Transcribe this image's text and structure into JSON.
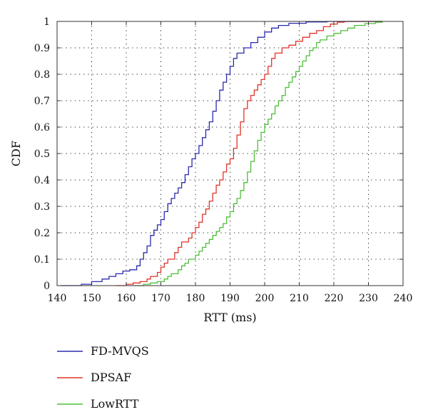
{
  "chart_data": {
    "type": "line",
    "step": true,
    "xlabel": "RTT (ms)",
    "ylabel": "CDF",
    "xlim": [
      140,
      240
    ],
    "ylim": [
      0,
      1
    ],
    "xticks": [
      "140",
      "150",
      "160",
      "170",
      "180",
      "190",
      "200",
      "210",
      "220",
      "230",
      "240"
    ],
    "yticks": [
      "0",
      "0.1",
      "0.2",
      "0.3",
      "0.4",
      "0.5",
      "0.6",
      "0.7",
      "0.8",
      "0.9",
      "1"
    ],
    "grid": true,
    "legend_position": "below-left",
    "series": [
      {
        "name": "FD-MVQS",
        "color": "#2b2bb0",
        "points": [
          [
            141,
            0
          ],
          [
            147,
            0.005
          ],
          [
            150,
            0.015
          ],
          [
            153,
            0.025
          ],
          [
            155,
            0.035
          ],
          [
            157,
            0.045
          ],
          [
            159,
            0.055
          ],
          [
            161,
            0.06
          ],
          [
            163,
            0.075
          ],
          [
            164,
            0.1
          ],
          [
            165,
            0.125
          ],
          [
            166,
            0.15
          ],
          [
            167,
            0.19
          ],
          [
            168,
            0.21
          ],
          [
            169,
            0.23
          ],
          [
            170,
            0.25
          ],
          [
            171,
            0.28
          ],
          [
            172,
            0.31
          ],
          [
            173,
            0.33
          ],
          [
            174,
            0.35
          ],
          [
            175,
            0.37
          ],
          [
            176,
            0.39
          ],
          [
            177,
            0.42
          ],
          [
            178,
            0.45
          ],
          [
            179,
            0.48
          ],
          [
            180,
            0.5
          ],
          [
            181,
            0.53
          ],
          [
            182,
            0.56
          ],
          [
            183,
            0.59
          ],
          [
            184,
            0.62
          ],
          [
            185,
            0.66
          ],
          [
            186,
            0.7
          ],
          [
            187,
            0.74
          ],
          [
            188,
            0.77
          ],
          [
            189,
            0.8
          ],
          [
            190,
            0.83
          ],
          [
            191,
            0.86
          ],
          [
            192,
            0.88
          ],
          [
            194,
            0.9
          ],
          [
            196,
            0.92
          ],
          [
            198,
            0.94
          ],
          [
            200,
            0.96
          ],
          [
            202,
            0.975
          ],
          [
            204,
            0.985
          ],
          [
            207,
            0.993
          ],
          [
            212,
            0.998
          ],
          [
            218,
            1
          ],
          [
            234,
            1
          ]
        ]
      },
      {
        "name": "DPSAF",
        "color": "#e0352a",
        "points": [
          [
            157,
            0
          ],
          [
            160,
            0.005
          ],
          [
            162,
            0.01
          ],
          [
            164,
            0.015
          ],
          [
            166,
            0.025
          ],
          [
            167,
            0.035
          ],
          [
            169,
            0.05
          ],
          [
            170,
            0.07
          ],
          [
            171,
            0.085
          ],
          [
            172,
            0.1
          ],
          [
            174,
            0.125
          ],
          [
            175,
            0.145
          ],
          [
            176,
            0.165
          ],
          [
            178,
            0.18
          ],
          [
            179,
            0.2
          ],
          [
            180,
            0.22
          ],
          [
            181,
            0.24
          ],
          [
            182,
            0.27
          ],
          [
            183,
            0.29
          ],
          [
            184,
            0.32
          ],
          [
            185,
            0.35
          ],
          [
            186,
            0.38
          ],
          [
            187,
            0.4
          ],
          [
            188,
            0.43
          ],
          [
            189,
            0.46
          ],
          [
            190,
            0.48
          ],
          [
            191,
            0.52
          ],
          [
            192,
            0.57
          ],
          [
            193,
            0.62
          ],
          [
            194,
            0.67
          ],
          [
            195,
            0.7
          ],
          [
            196,
            0.72
          ],
          [
            197,
            0.74
          ],
          [
            198,
            0.76
          ],
          [
            199,
            0.78
          ],
          [
            200,
            0.8
          ],
          [
            201,
            0.83
          ],
          [
            202,
            0.86
          ],
          [
            203,
            0.88
          ],
          [
            205,
            0.9
          ],
          [
            207,
            0.91
          ],
          [
            209,
            0.925
          ],
          [
            211,
            0.94
          ],
          [
            213,
            0.955
          ],
          [
            215,
            0.965
          ],
          [
            217,
            0.98
          ],
          [
            219,
            0.99
          ],
          [
            221,
            0.997
          ],
          [
            223,
            1
          ],
          [
            234,
            1
          ]
        ]
      },
      {
        "name": "LowRTT",
        "color": "#4fbf3a",
        "points": [
          [
            162,
            0
          ],
          [
            165,
            0.005
          ],
          [
            167,
            0.01
          ],
          [
            169,
            0.015
          ],
          [
            171,
            0.025
          ],
          [
            172,
            0.035
          ],
          [
            173,
            0.045
          ],
          [
            175,
            0.06
          ],
          [
            176,
            0.075
          ],
          [
            177,
            0.085
          ],
          [
            178,
            0.1
          ],
          [
            180,
            0.115
          ],
          [
            181,
            0.13
          ],
          [
            182,
            0.145
          ],
          [
            183,
            0.16
          ],
          [
            184,
            0.175
          ],
          [
            185,
            0.19
          ],
          [
            186,
            0.205
          ],
          [
            187,
            0.22
          ],
          [
            188,
            0.235
          ],
          [
            189,
            0.26
          ],
          [
            190,
            0.28
          ],
          [
            191,
            0.31
          ],
          [
            192,
            0.33
          ],
          [
            193,
            0.36
          ],
          [
            194,
            0.39
          ],
          [
            195,
            0.43
          ],
          [
            196,
            0.47
          ],
          [
            197,
            0.51
          ],
          [
            198,
            0.55
          ],
          [
            199,
            0.58
          ],
          [
            200,
            0.61
          ],
          [
            201,
            0.63
          ],
          [
            202,
            0.65
          ],
          [
            203,
            0.68
          ],
          [
            204,
            0.7
          ],
          [
            205,
            0.72
          ],
          [
            206,
            0.75
          ],
          [
            207,
            0.77
          ],
          [
            208,
            0.79
          ],
          [
            209,
            0.81
          ],
          [
            210,
            0.83
          ],
          [
            211,
            0.85
          ],
          [
            212,
            0.87
          ],
          [
            213,
            0.89
          ],
          [
            214,
            0.9
          ],
          [
            215,
            0.92
          ],
          [
            216,
            0.93
          ],
          [
            218,
            0.945
          ],
          [
            220,
            0.955
          ],
          [
            222,
            0.965
          ],
          [
            224,
            0.975
          ],
          [
            226,
            0.985
          ],
          [
            229,
            0.992
          ],
          [
            232,
            0.997
          ],
          [
            234,
            1
          ]
        ]
      }
    ]
  }
}
